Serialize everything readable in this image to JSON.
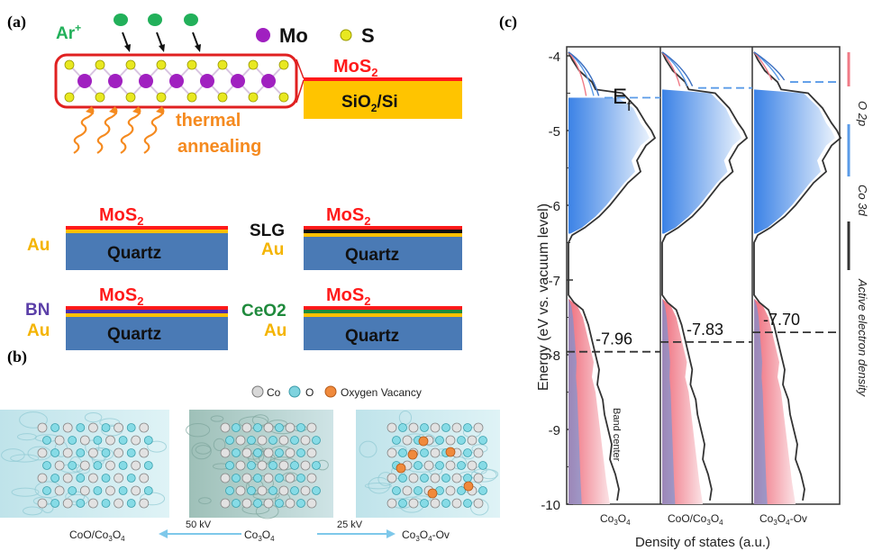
{
  "panel_a": {
    "label": "(a)",
    "ion": "Ar",
    "ion_charge": "+",
    "legend": [
      {
        "label": "Mo",
        "color": "#a020c0"
      },
      {
        "label": "S",
        "color": "#e0e020"
      }
    ],
    "thermal_line1": "thermal",
    "thermal_line2": "annealing",
    "main_stack": {
      "film": "MoS",
      "film_sub": "2",
      "substrate_main": "SiO",
      "substrate_sub": "2",
      "substrate_rest": "/Si"
    },
    "stacks": [
      {
        "film": "MoS",
        "film_sub": "2",
        "left_labels": [
          "Au"
        ],
        "substrate": "Quartz"
      },
      {
        "film": "MoS",
        "film_sub": "2",
        "left_labels": [
          "SLG",
          "Au"
        ],
        "substrate": "Quartz"
      },
      {
        "film": "MoS",
        "film_sub": "2",
        "left_labels": [
          "BN",
          "Au"
        ],
        "substrate": "Quartz"
      },
      {
        "film": "MoS",
        "film_sub": "2",
        "left_labels": [
          "CeO2",
          "Au"
        ],
        "substrate": "Quartz"
      }
    ],
    "colors": {
      "mos2": "#ff1a1a",
      "au": "#ffc000",
      "quartz": "#4a7ab5",
      "sio2": "#ffc400",
      "slg": "#111111",
      "bn": "#5b3fa8",
      "ceo2": "#1f8a3c",
      "thermal": "#f58a1f",
      "ar": "#22b05a"
    }
  },
  "panel_b": {
    "label": "(b)",
    "legend": [
      "Co",
      "O",
      "Oxygen Vacancy"
    ],
    "structures": [
      {
        "name_main": "CoO/Co",
        "name_sub1": "3",
        "name_mid": "O",
        "name_sub2": "4",
        "name_rest": ""
      },
      {
        "name_main": "Co",
        "name_sub1": "3",
        "name_mid": "O",
        "name_sub2": "4",
        "name_rest": ""
      },
      {
        "name_main": "Co",
        "name_sub1": "3",
        "name_mid": "O",
        "name_sub2": "4",
        "name_rest": "-Ov"
      }
    ],
    "arrow_left": "50 kV",
    "arrow_right": "25 kV"
  },
  "panel_c": {
    "label": "(c)",
    "ylabel": "Energy (eV vs. vacuum level)",
    "xlabel": "Density of states (a.u.)",
    "fermi_label": "E",
    "fermi_sub": "f",
    "band_center_text": "Band center",
    "yticks": [
      "-4",
      "-5",
      "-6",
      "-7",
      "-8",
      "-9",
      "-10"
    ],
    "legend": [
      {
        "label": "O 2p",
        "color": "#f07a86"
      },
      {
        "label": "Co 3d",
        "color": "#5a9be8"
      },
      {
        "label": "Active electron density",
        "color": "#333333"
      }
    ]
  },
  "chart_data": {
    "type": "area",
    "ylabel": "Energy (eV vs. vacuum level)",
    "xlabel": "Density of states (a.u.)",
    "ylim": [
      -10,
      -3.6
    ],
    "series": [
      {
        "name": "Co3O4",
        "band_center": -7.96,
        "fermi_level": -4.56
      },
      {
        "name": "CoO/Co3O4",
        "band_center": -7.83,
        "fermi_level": -4.43
      },
      {
        "name": "Co3O4-Ov",
        "band_center": -7.7,
        "fermi_level": -4.35
      }
    ],
    "band_center_labels": [
      "-7.96",
      "-7.83",
      "-7.70"
    ]
  }
}
